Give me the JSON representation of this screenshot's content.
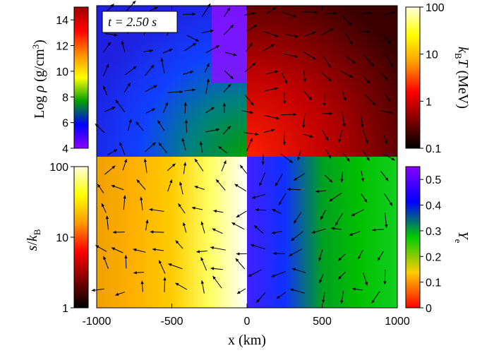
{
  "chart_data": {
    "type": "heatmap",
    "title": "",
    "time_label": "t = 2.50 s",
    "xlabel": "x (km)",
    "x_ticks": [
      -1000,
      -500,
      0,
      500,
      1000
    ],
    "xlim": [
      -1000,
      1000
    ],
    "panels": [
      {
        "name": "density",
        "quadrant": "top-left",
        "range": [
          -1000,
          0
        ]
      },
      {
        "name": "temperature",
        "quadrant": "top-right",
        "range": [
          0,
          1000
        ]
      },
      {
        "name": "entropy",
        "quadrant": "bottom-left",
        "range": [
          -1000,
          0
        ]
      },
      {
        "name": "electron-fraction",
        "quadrant": "bottom-right",
        "range": [
          0,
          1000
        ]
      }
    ],
    "colorbars": {
      "density": {
        "label_prefix": "Log ",
        "label_symbol": "ρ",
        "label_unit": " (g/cm",
        "label_sup": "3",
        "label_close": ")",
        "ticks": [
          "4",
          "6",
          "8",
          "10",
          "12",
          "14"
        ],
        "range": [
          4,
          15
        ],
        "scale": "linear",
        "colormap": [
          "#8b00ff",
          "#0000ff",
          "#00a000",
          "#ffff00",
          "#ff8c00",
          "#ff0000",
          "#a00000"
        ]
      },
      "temperature": {
        "label_symbol": "k",
        "label_sub": "B",
        "label_var": "T",
        "label_unit": " (MeV)",
        "ticks": [
          "0.1",
          "1",
          "10",
          "100"
        ],
        "range": [
          0.1,
          100
        ],
        "scale": "log",
        "colormap": [
          "#000000",
          "#800000",
          "#ff0000",
          "#ff9900",
          "#ffff00",
          "#ffffdd"
        ]
      },
      "entropy": {
        "label_var": "s",
        "label_slash": "/",
        "label_k": "k",
        "label_sub": "B",
        "ticks": [
          "1",
          "10",
          "100"
        ],
        "range": [
          1,
          100
        ],
        "scale": "log",
        "colormap": [
          "#000000",
          "#800000",
          "#ff0000",
          "#ff9900",
          "#ffff00",
          "#ffffdd"
        ]
      },
      "electron_fraction": {
        "label_var": "Y",
        "label_sub": "e",
        "ticks": [
          "0",
          "0.1",
          "0.2",
          "0.3",
          "0.4",
          "0.5"
        ],
        "range": [
          0,
          0.55
        ],
        "scale": "linear",
        "colormap": [
          "#ff0000",
          "#ffcc00",
          "#00cc00",
          "#0000ff",
          "#8800ff"
        ]
      }
    },
    "grid": false,
    "legend": "none"
  }
}
